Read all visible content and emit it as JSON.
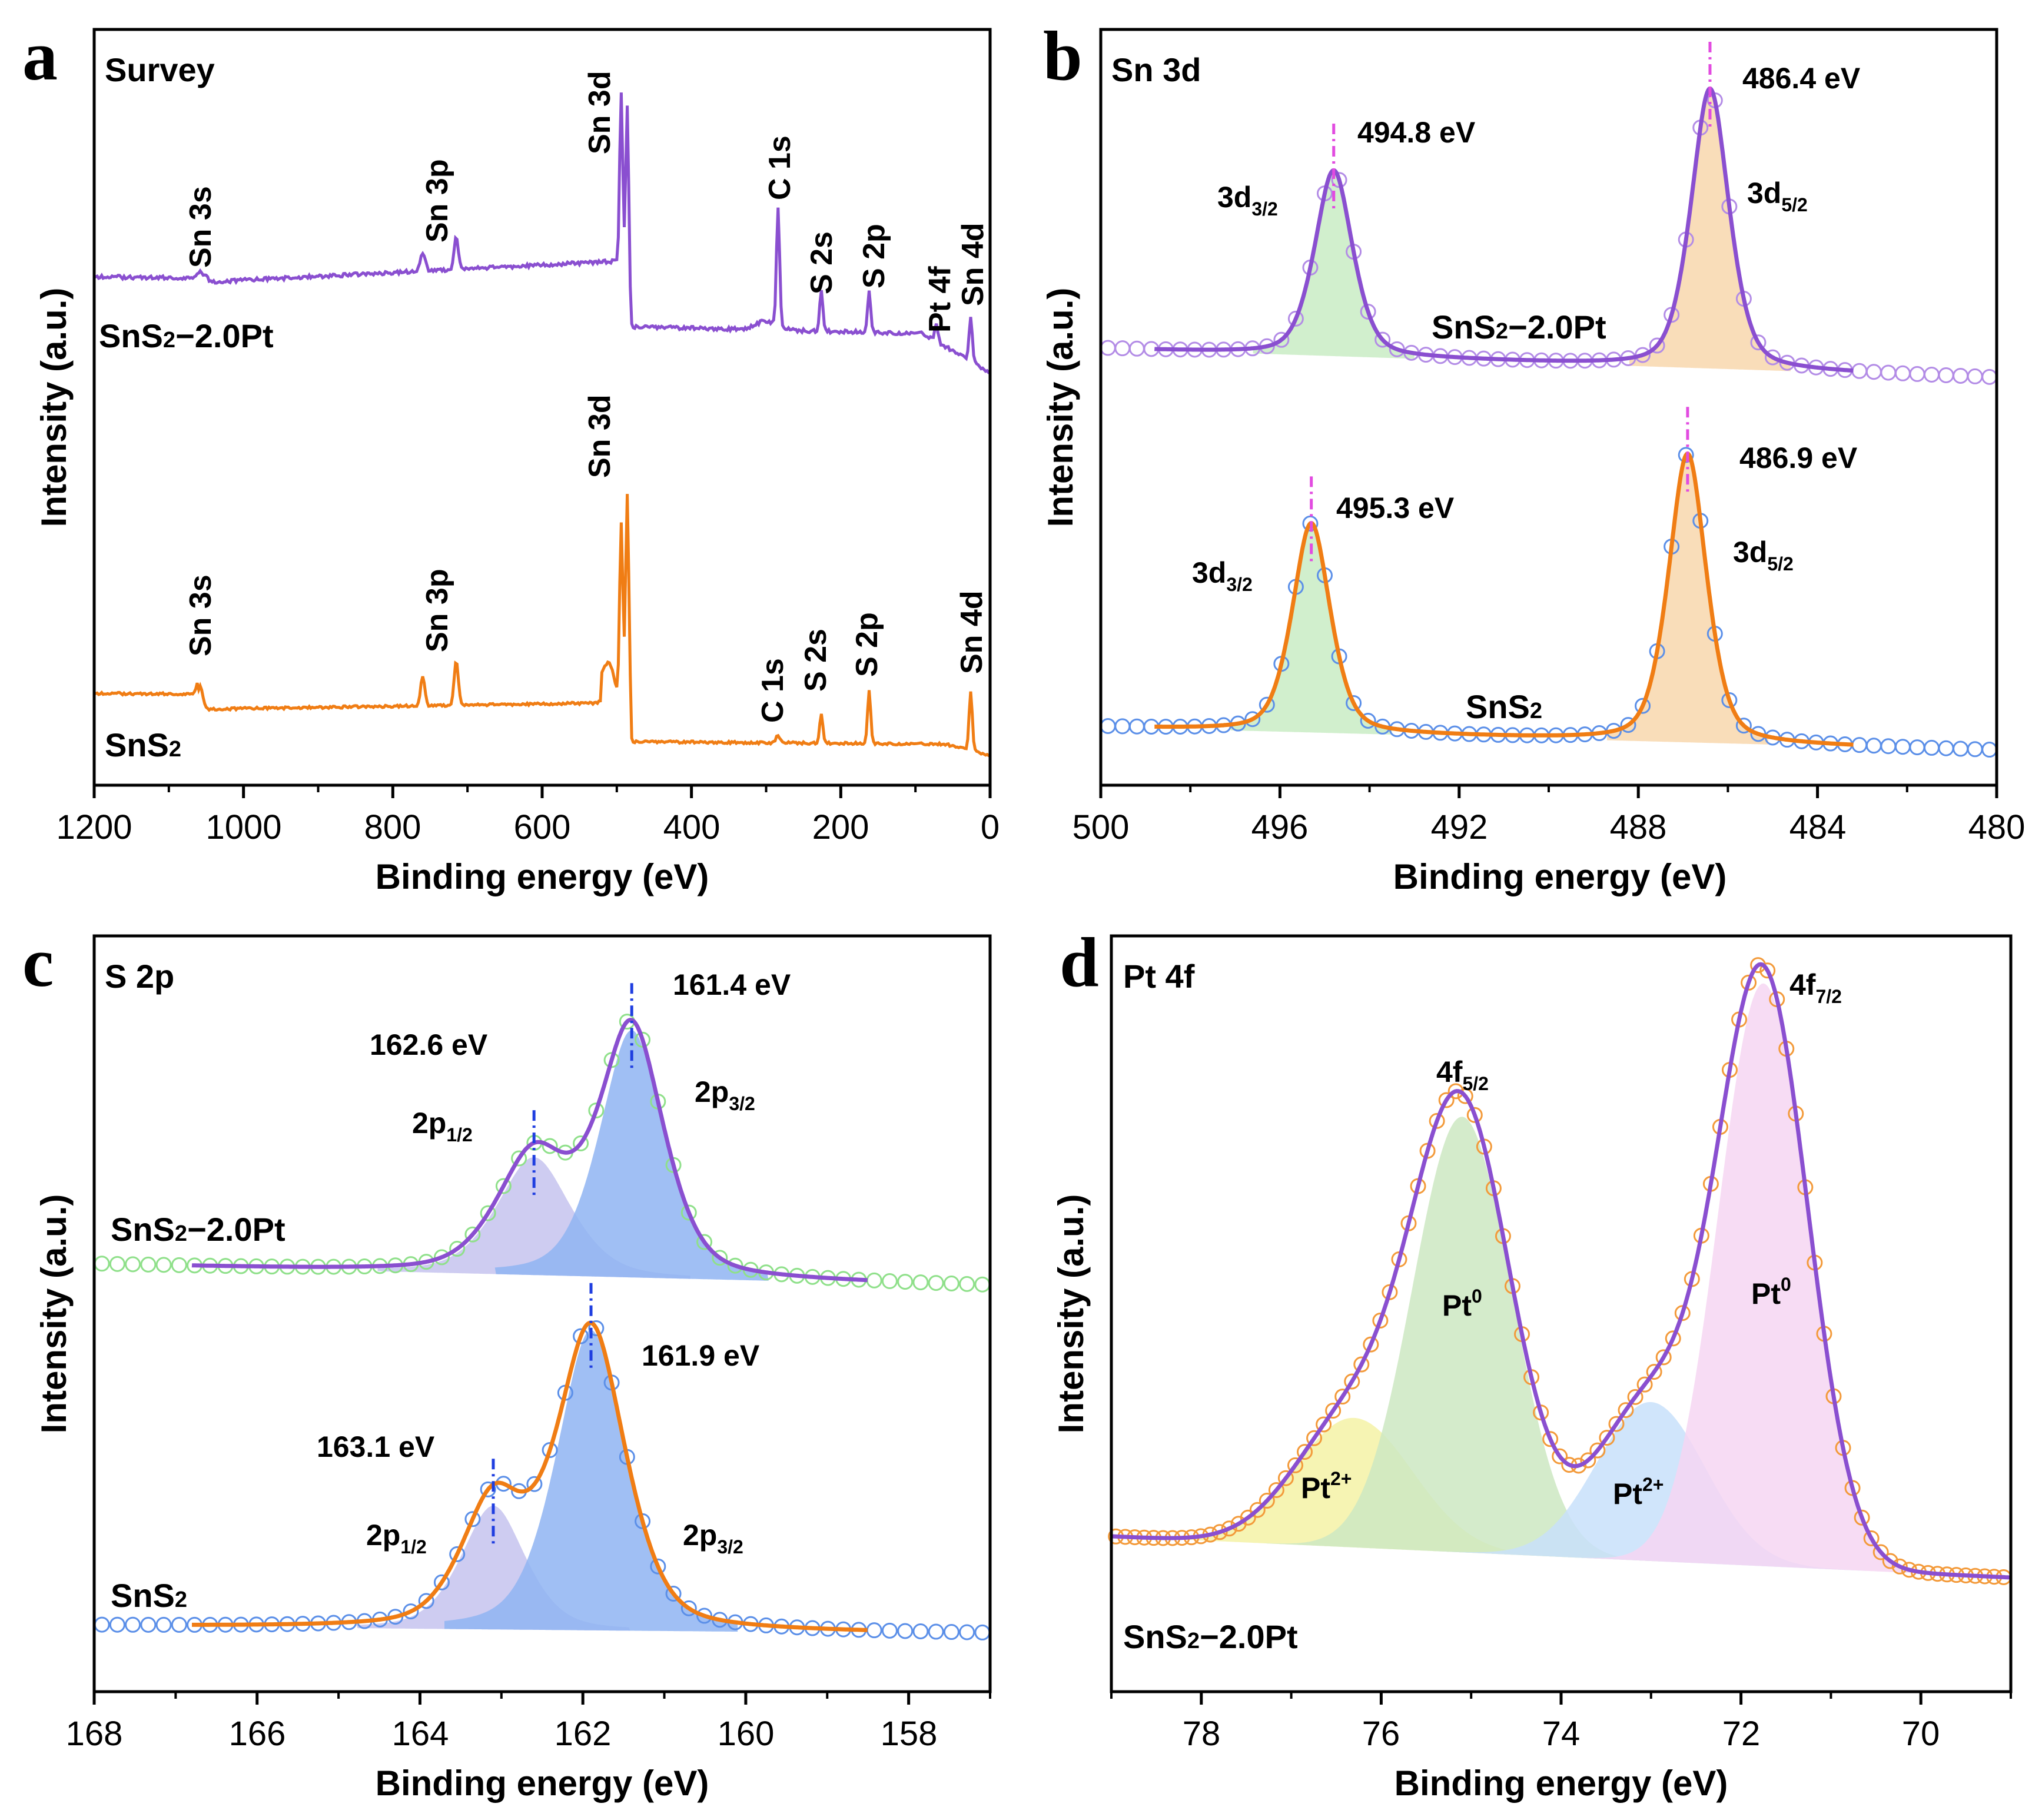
{
  "figure_title": "XPS spectra of SnS2 and SnS2-2.0Pt",
  "colors": {
    "pt_sample": "#8a4fd0",
    "bare_sample": "#f07d14",
    "circles_purple": "#b38ce6",
    "circles_blue": "#5b8fe8",
    "circles_green": "#8fe08a",
    "circles_orange": "#f39a3a",
    "fill_green": "#c9ecc4",
    "fill_orange": "#f8d7ad",
    "fill_lavender": "#c6c3ef",
    "fill_blue": "#8fb4f2",
    "fill_yellow": "#f4f2a6",
    "fill_lightgreen": "#cde8c2",
    "fill_lightblue": "#c8e1fa",
    "fill_pink": "#f6d6f2",
    "peak_marker_magenta": "#e24be0",
    "peak_marker_blue": "#1f3ee0"
  },
  "chart_data": [
    {
      "panel": "a",
      "type": "line",
      "title": "Survey",
      "xlabel": "Binding energy (eV)",
      "ylabel": "Intensity (a.u.)",
      "xlim": [
        1200,
        0
      ],
      "xticks": [
        1200,
        1000,
        800,
        600,
        400,
        200,
        0
      ],
      "series": [
        {
          "name": "SnS₂−2.0Pt",
          "color": "#8a4fd0",
          "peaks": [
            {
              "label": "Sn 3s",
              "x": 1058
            },
            {
              "label": "Sn 3p",
              "x": 760
            },
            {
              "label": "Sn 3d",
              "x": 486
            },
            {
              "label": "C 1s",
              "x": 284
            },
            {
              "label": "S 2s",
              "x": 226
            },
            {
              "label": "S 2p",
              "x": 162
            },
            {
              "label": "Pt 4f",
              "x": 72
            },
            {
              "label": "Sn 4d",
              "x": 26
            }
          ]
        },
        {
          "name": "SnS₂",
          "color": "#f07d14",
          "peaks": [
            {
              "label": "Sn 3s",
              "x": 1058
            },
            {
              "label": "Sn 3p",
              "x": 760
            },
            {
              "label": "Sn 3d",
              "x": 486
            },
            {
              "label": "C 1s",
              "x": 284
            },
            {
              "label": "S 2s",
              "x": 226
            },
            {
              "label": "S 2p",
              "x": 162
            },
            {
              "label": "Sn 4d",
              "x": 26
            }
          ]
        }
      ]
    },
    {
      "panel": "b",
      "type": "line",
      "title": "Sn 3d",
      "xlabel": "Binding energy (eV)",
      "ylabel": "Intensity (a.u.)",
      "xlim": [
        500,
        480
      ],
      "xticks": [
        500,
        496,
        492,
        488,
        484,
        480
      ],
      "series": [
        {
          "name": "SnS₂−2.0Pt",
          "peaks": [
            {
              "component": "3d3/2",
              "sub": "3/2",
              "center": 494.8,
              "label": "494.8 eV"
            },
            {
              "component": "3d5/2",
              "sub": "5/2",
              "center": 486.4,
              "label": "486.4 eV"
            }
          ]
        },
        {
          "name": "SnS₂",
          "peaks": [
            {
              "component": "3d3/2",
              "sub": "3/2",
              "center": 495.3,
              "label": "495.3 eV"
            },
            {
              "component": "3d5/2",
              "sub": "5/2",
              "center": 486.9,
              "label": "486.9 eV"
            }
          ]
        }
      ]
    },
    {
      "panel": "c",
      "type": "line",
      "title": "S 2p",
      "xlabel": "Binding energy (eV)",
      "ylabel": "Intensity (a.u.)",
      "xlim": [
        168,
        157
      ],
      "xticks": [
        168,
        166,
        164,
        162,
        160,
        158
      ],
      "series": [
        {
          "name": "SnS₂−2.0Pt",
          "peaks": [
            {
              "component": "2p1/2",
              "sub": "1/2",
              "center": 162.6,
              "label": "162.6 eV"
            },
            {
              "component": "2p3/2",
              "sub": "3/2",
              "center": 161.4,
              "label": "161.4 eV"
            }
          ]
        },
        {
          "name": "SnS₂",
          "peaks": [
            {
              "component": "2p1/2",
              "sub": "1/2",
              "center": 163.1,
              "label": "163.1 eV"
            },
            {
              "component": "2p3/2",
              "sub": "3/2",
              "center": 161.9,
              "label": "161.9 eV"
            }
          ]
        }
      ]
    },
    {
      "panel": "d",
      "type": "line",
      "title": "Pt 4f",
      "xlabel": "Binding energy (eV)",
      "ylabel": "Intensity (a.u.)",
      "xlim": [
        79,
        69
      ],
      "xticks": [
        78,
        76,
        74,
        72,
        70
      ],
      "sample": "SnS₂−2.0Pt",
      "peak_labels": [
        {
          "component": "4f5/2",
          "sub": "5/2",
          "center": 75.1
        },
        {
          "component": "4f7/2",
          "sub": "7/2",
          "center": 71.8
        }
      ],
      "components": [
        {
          "species": "Pt",
          "sup": "0",
          "center": 75.1
        },
        {
          "species": "Pt",
          "sup": "0",
          "center": 71.7
        },
        {
          "species": "Pt",
          "sup": "2+",
          "center": 76.3
        },
        {
          "species": "Pt",
          "sup": "2+",
          "center": 73.0
        }
      ]
    }
  ],
  "panels": {
    "a": {
      "letter": "a",
      "title": "Survey",
      "xlabel": "Binding energy (eV)",
      "ylabel": "Intensity (a.u.)",
      "top_sample_pre": "SnS",
      "top_sample_sub": "2",
      "top_sample_post": "−2.0Pt",
      "bottom_sample_pre": "SnS",
      "bottom_sample_sub": "2",
      "top_peaks": [
        "Sn 3s",
        "Sn 3p",
        "Sn 3d",
        "C 1s",
        "S 2s",
        "S 2p",
        "Pt 4f",
        "Sn 4d"
      ],
      "bottom_peaks": [
        "Sn 3s",
        "Sn 3p",
        "Sn 3d",
        "C 1s",
        "S 2s",
        "S 2p",
        "Sn 4d"
      ],
      "xticks": [
        "1200",
        "1000",
        "800",
        "600",
        "400",
        "200",
        "0"
      ]
    },
    "b": {
      "letter": "b",
      "title": "Sn 3d",
      "xlabel": "Binding energy (eV)",
      "ylabel": "Intensity (a.u.)",
      "top_sample_pre": "SnS",
      "top_sample_sub": "2",
      "top_sample_post": "−2.0Pt",
      "bottom_sample_pre": "SnS",
      "bottom_sample_sub": "2",
      "top_e1": "494.8 eV",
      "top_e2": "486.4 eV",
      "bottom_e1": "495.3 eV",
      "bottom_e2": "486.9 eV",
      "comp_main": "3d",
      "comp_sub1": "3/2",
      "comp_sub2": "5/2",
      "xticks": [
        "500",
        "496",
        "492",
        "488",
        "484",
        "480"
      ]
    },
    "c": {
      "letter": "c",
      "title": "S 2p",
      "xlabel": "Binding energy (eV)",
      "ylabel": "Intensity (a.u.)",
      "top_sample_pre": "SnS",
      "top_sample_sub": "2",
      "top_sample_post": "−2.0Pt",
      "bottom_sample_pre": "SnS",
      "bottom_sample_sub": "2",
      "top_e1": "162.6 eV",
      "top_e2": "161.4 eV",
      "bottom_e1": "163.1 eV",
      "bottom_e2": "161.9 eV",
      "comp_main": "2p",
      "comp_sub1": "1/2",
      "comp_sub2": "3/2",
      "xticks": [
        "168",
        "166",
        "164",
        "162",
        "160",
        "158"
      ]
    },
    "d": {
      "letter": "d",
      "title": "Pt 4f",
      "xlabel": "Binding energy (eV)",
      "ylabel": "Intensity (a.u.)",
      "sample_pre": "SnS",
      "sample_sub": "2",
      "sample_post": "−2.0Pt",
      "comp_main": "4f",
      "comp_sub1": "5/2",
      "comp_sub2": "7/2",
      "pt": "Pt",
      "sup0": "0",
      "sup2": "2+",
      "xticks": [
        "78",
        "76",
        "74",
        "72",
        "70"
      ]
    }
  }
}
